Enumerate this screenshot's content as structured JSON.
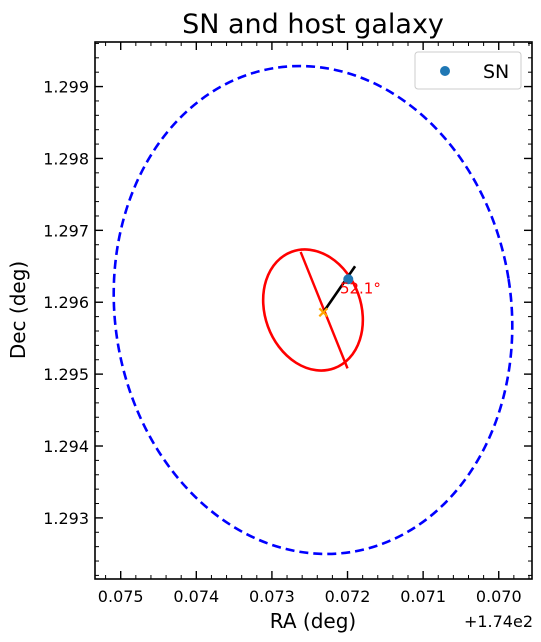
{
  "chart_data": {
    "type": "scatter",
    "title": "SN and host galaxy",
    "xlabel": "RA (deg)",
    "ylabel": "Dec (deg)",
    "x_offset_label": "+1.74e2",
    "xlim": [
      174.07534,
      174.06956
    ],
    "ylim": [
      1.29215,
      1.29962
    ],
    "x_ticks": [
      174.075,
      174.074,
      174.073,
      174.072,
      174.071,
      174.07
    ],
    "x_tick_labels": [
      "0.075",
      "0.074",
      "0.073",
      "0.072",
      "0.071",
      "0.070"
    ],
    "y_ticks": [
      1.293,
      1.294,
      1.295,
      1.296,
      1.297,
      1.298,
      1.299
    ],
    "y_tick_labels": [
      "1.293",
      "1.294",
      "1.295",
      "1.296",
      "1.297",
      "1.298",
      "1.299"
    ],
    "grid": false,
    "legend": {
      "position": "top-right",
      "entries": [
        {
          "label": "SN",
          "color": "#1f77b4"
        }
      ]
    },
    "sn_point": {
      "ra": 174.07199,
      "dec": 1.29632,
      "color": "#1f77b4"
    },
    "host_center": {
      "ra": 174.07232,
      "dec": 1.29586,
      "marker": "x",
      "color": "#ffa500"
    },
    "host_ellipse": {
      "color": "#ff0000",
      "axis_endpoints": [
        {
          "ra": 174.07262,
          "dec": 1.2967
        },
        {
          "ra": 174.072,
          "dec": 1.29508
        }
      ]
    },
    "outer_ellipse": {
      "color": "#0000ff",
      "linestyle": "dashed"
    },
    "separation_line": {
      "color": "#000000",
      "from": {
        "ra": 174.07232,
        "dec": 1.29586
      },
      "to": {
        "ra": 174.0719,
        "dec": 1.2965
      }
    },
    "angle_annotation": {
      "text": "52.1°",
      "ra": 174.0721,
      "dec": 1.29612,
      "color": "#ff0000"
    }
  }
}
